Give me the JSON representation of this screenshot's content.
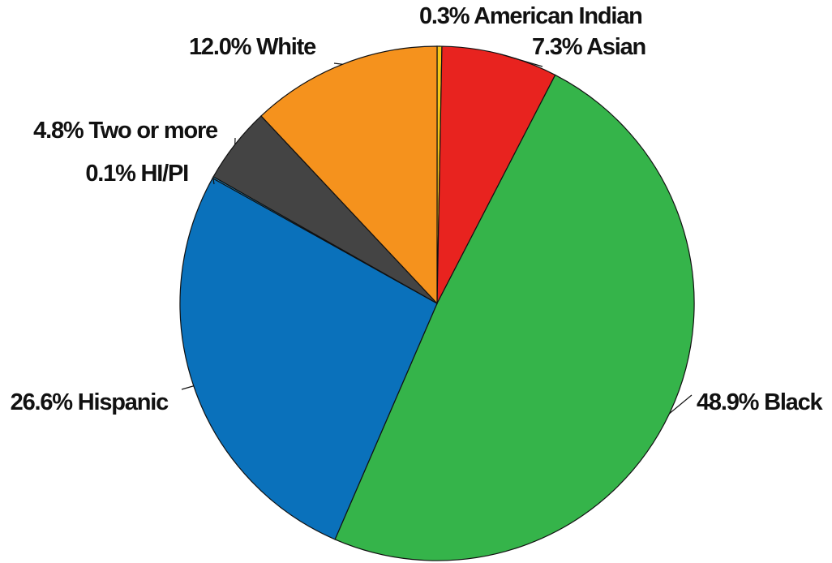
{
  "chart_data": {
    "type": "pie",
    "start_angle_deg": 0,
    "direction": "clockwise",
    "legend": "none",
    "slices": [
      {
        "category": "American Indian",
        "value": 0.3,
        "label": "0.3% American Indian",
        "color": "#F5C518"
      },
      {
        "category": "Asian",
        "value": 7.3,
        "label": "7.3% Asian",
        "color": "#E8231F"
      },
      {
        "category": "Black",
        "value": 48.9,
        "label": "48.9% Black",
        "color": "#35B44A"
      },
      {
        "category": "Hispanic",
        "value": 26.6,
        "label": "26.6% Hispanic",
        "color": "#0A71BB"
      },
      {
        "category": "HI/PI",
        "value": 0.1,
        "label": "0.1% HI/PI",
        "color": "#1E9BE0"
      },
      {
        "category": "Two or more",
        "value": 4.8,
        "label": "4.8% Two or more",
        "color": "#444444"
      },
      {
        "category": "White",
        "value": 12.0,
        "label": "12.0% White",
        "color": "#F5921D"
      }
    ]
  }
}
